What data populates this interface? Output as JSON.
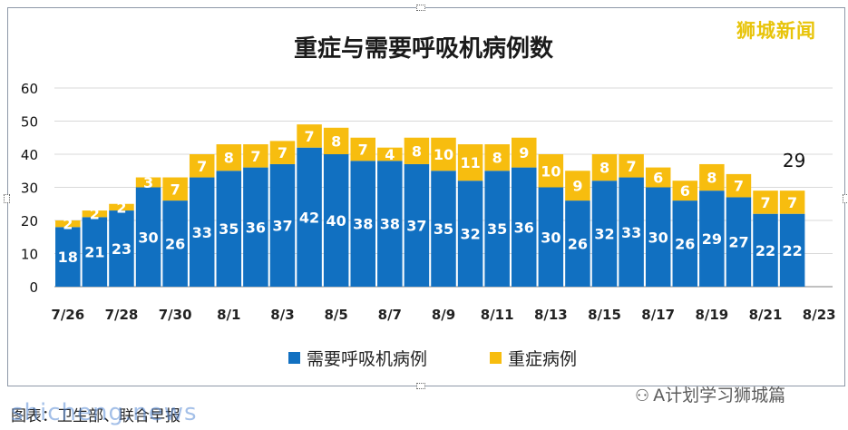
{
  "watermark": "狮城新闻",
  "caption": "图表：卫生部、联合早报",
  "caption_overlay": "shicheng.news",
  "wechat": {
    "icon": "wechat-icon",
    "label": "A计划学习狮城篇"
  },
  "colors": {
    "ventilator": "#1170c1",
    "icu": "#f7bd0f",
    "grid": "#d9d9d9",
    "title": "#1a1a1a"
  },
  "chart_data": {
    "type": "bar",
    "stacked": true,
    "title": "重症与需要呼吸机病例数",
    "categories": [
      "7/26",
      "7/27",
      "7/28",
      "7/29",
      "7/30",
      "7/31",
      "8/1",
      "8/2",
      "8/3",
      "8/4",
      "8/5",
      "8/6",
      "8/7",
      "8/8",
      "8/9",
      "8/10",
      "8/11",
      "8/12",
      "8/13",
      "8/14",
      "8/15",
      "8/16",
      "8/17",
      "8/18",
      "8/19",
      "8/20",
      "8/21",
      "8/22",
      "8/23"
    ],
    "tick_labels": [
      "7/26",
      "7/28",
      "7/30",
      "8/1",
      "8/3",
      "8/5",
      "8/7",
      "8/9",
      "8/11",
      "8/13",
      "8/15",
      "8/17",
      "8/19",
      "8/21",
      "8/23"
    ],
    "series": [
      {
        "name": "需要呼吸机病例",
        "values": [
          18,
          21,
          23,
          30,
          26,
          33,
          35,
          36,
          37,
          42,
          40,
          38,
          38,
          37,
          35,
          32,
          35,
          36,
          30,
          26,
          32,
          33,
          30,
          26,
          29,
          27,
          22,
          22,
          null
        ]
      },
      {
        "name": "重症病例",
        "values": [
          2,
          2,
          2,
          3,
          7,
          7,
          8,
          7,
          7,
          7,
          8,
          7,
          4,
          8,
          10,
          11,
          8,
          9,
          10,
          9,
          8,
          7,
          6,
          6,
          8,
          7,
          7,
          7,
          null
        ]
      }
    ],
    "annotations": [
      {
        "text": "29",
        "category": "8/22"
      }
    ],
    "ylim": [
      0,
      60
    ],
    "yticks": [
      0,
      10,
      20,
      30,
      40,
      50,
      60
    ],
    "grid": true,
    "legend": "bottom"
  }
}
